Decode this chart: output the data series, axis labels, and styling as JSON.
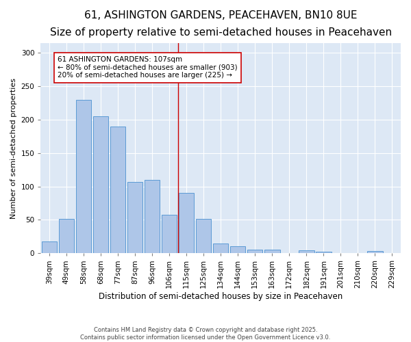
{
  "title": "61, ASHINGTON GARDENS, PEACEHAVEN, BN10 8UE",
  "subtitle": "Size of property relative to semi-detached houses in Peacehaven",
  "xlabel": "Distribution of semi-detached houses by size in Peacehaven",
  "ylabel": "Number of semi-detached properties",
  "categories": [
    "39sqm",
    "49sqm",
    "58sqm",
    "68sqm",
    "77sqm",
    "87sqm",
    "96sqm",
    "106sqm",
    "115sqm",
    "125sqm",
    "134sqm",
    "144sqm",
    "153sqm",
    "163sqm",
    "172sqm",
    "182sqm",
    "191sqm",
    "201sqm",
    "210sqm",
    "220sqm",
    "229sqm"
  ],
  "values": [
    18,
    52,
    230,
    205,
    190,
    107,
    110,
    58,
    90,
    52,
    15,
    11,
    5,
    5,
    0,
    4,
    2,
    0,
    0,
    3,
    0
  ],
  "bar_color": "#aec6e8",
  "bar_edge_color": "#5b9bd5",
  "vline_x": 7.5,
  "vline_color": "#cc0000",
  "annotation_text": "61 ASHINGTON GARDENS: 107sqm\n← 80% of semi-detached houses are smaller (903)\n20% of semi-detached houses are larger (225) →",
  "annotation_box_color": "#cc0000",
  "background_color": "#dde8f5",
  "ylim": [
    0,
    315
  ],
  "yticks": [
    0,
    50,
    100,
    150,
    200,
    250,
    300
  ],
  "footer_line1": "Contains HM Land Registry data © Crown copyright and database right 2025.",
  "footer_line2": "Contains public sector information licensed under the Open Government Licence v3.0.",
  "title_fontsize": 11,
  "subtitle_fontsize": 9,
  "xlabel_fontsize": 8.5,
  "ylabel_fontsize": 8,
  "tick_fontsize": 7.5,
  "annotation_fontsize": 7.5,
  "footer_fontsize": 6
}
